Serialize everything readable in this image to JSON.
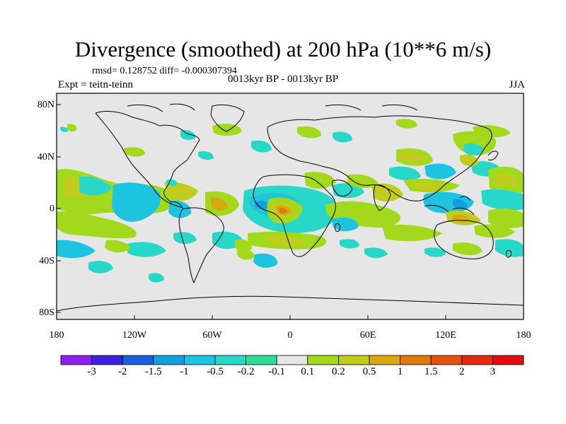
{
  "title": "Divergence (smoothed) at 200 hPa (10**6 m/s)",
  "stats": "rmsd= 0.128752 diff= -0.000307394",
  "subtitle": "0013kyr BP - 0013kyr BP",
  "left_label": "Expt = teitn-teinn",
  "right_label": "JJA",
  "lat_labels": [
    "80N",
    "40N",
    "0",
    "40S",
    "80S"
  ],
  "lon_labels": [
    "180",
    "120W",
    "60W",
    "0",
    "60E",
    "120E",
    "180"
  ],
  "colorbar": {
    "colors": [
      "#8f1fef",
      "#3d22db",
      "#1a5edb",
      "#14a0de",
      "#1cc4e0",
      "#27d8c8",
      "#2fdb9a",
      "#e6e6e6",
      "#a3d91c",
      "#c2cc1c",
      "#d9a80f",
      "#e07a0a",
      "#e2520a",
      "#e02b0c",
      "#e00c0c"
    ],
    "labels": [
      "-3",
      "-2",
      "-1.5",
      "-1",
      "-0.5",
      "-0.2",
      "-0.1",
      "0.1",
      "0.2",
      "0.5",
      "1",
      "1.5",
      "2",
      "3"
    ]
  },
  "colors": {
    "background": "#e6e6e6",
    "pos_light": "#a3d91c",
    "pos_med": "#c2cc1c",
    "pos_strong": "#d9a80f",
    "pos_max": "#e07a0a",
    "neg_light": "#2fdb9a",
    "neg_med": "#27d8c8",
    "neg_strong": "#1cc4e0",
    "neg_max": "#14a0de"
  }
}
